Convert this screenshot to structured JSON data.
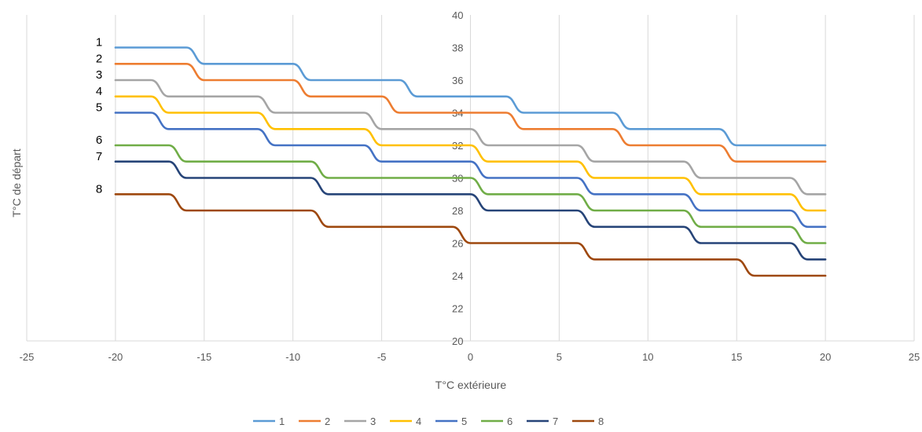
{
  "chart_data": {
    "type": "line",
    "xlabel": "T°C extérieure",
    "ylabel": "T°C de départ",
    "xlim": [
      -25,
      25
    ],
    "ylim": [
      20,
      40
    ],
    "xticks": [
      -25,
      -20,
      -15,
      -10,
      -5,
      0,
      5,
      10,
      15,
      20,
      25
    ],
    "yticks": [
      20,
      22,
      24,
      26,
      28,
      30,
      32,
      34,
      36,
      38,
      40
    ],
    "grid": "vertical",
    "legend": "bottom",
    "curve_labels": [
      "1",
      "2",
      "3",
      "4",
      "5",
      "6",
      "7",
      "8"
    ],
    "series": [
      {
        "name": "1",
        "color": "#5B9BD5",
        "x": [
          -20,
          -16,
          -15,
          -10,
          -9,
          -4,
          -3,
          2,
          3,
          8,
          9,
          14,
          15,
          20
        ],
        "y": [
          38,
          38,
          37,
          37,
          36,
          36,
          35,
          35,
          34,
          34,
          33,
          33,
          32,
          32
        ]
      },
      {
        "name": "2",
        "color": "#ED7D31",
        "x": [
          -20,
          -16,
          -15,
          -10,
          -9,
          -5,
          -4,
          2,
          3,
          8,
          9,
          14,
          15,
          20
        ],
        "y": [
          37,
          37,
          36,
          36,
          35,
          35,
          34,
          34,
          33,
          33,
          32,
          32,
          31,
          31
        ]
      },
      {
        "name": "3",
        "color": "#A5A5A5",
        "x": [
          -20,
          -18,
          -17,
          -12,
          -11,
          -6,
          -5,
          0,
          1,
          6,
          7,
          12,
          13,
          18,
          19,
          20
        ],
        "y": [
          36,
          36,
          35,
          35,
          34,
          34,
          33,
          33,
          32,
          32,
          31,
          31,
          30,
          30,
          29,
          29
        ]
      },
      {
        "name": "4",
        "color": "#FFC000",
        "x": [
          -20,
          -18,
          -17,
          -12,
          -11,
          -6,
          -5,
          0,
          1,
          6,
          7,
          12,
          13,
          18,
          19,
          20
        ],
        "y": [
          35,
          35,
          34,
          34,
          33,
          33,
          32,
          32,
          31,
          31,
          30,
          30,
          29,
          29,
          28,
          28
        ]
      },
      {
        "name": "5",
        "color": "#4472C4",
        "x": [
          -20,
          -18,
          -17,
          -12,
          -11,
          -6,
          -5,
          0,
          1,
          6,
          7,
          12,
          13,
          18,
          19,
          20
        ],
        "y": [
          34,
          34,
          33,
          33,
          32,
          32,
          31,
          31,
          30,
          30,
          29,
          29,
          28,
          28,
          27,
          27
        ]
      },
      {
        "name": "6",
        "color": "#70AD47",
        "x": [
          -20,
          -17,
          -16,
          -9,
          -8,
          0,
          1,
          6,
          7,
          12,
          13,
          18,
          19,
          20
        ],
        "y": [
          32,
          32,
          31,
          31,
          30,
          30,
          29,
          29,
          28,
          28,
          27,
          27,
          26,
          26
        ]
      },
      {
        "name": "7",
        "color": "#264478",
        "x": [
          -20,
          -17,
          -16,
          -9,
          -8,
          0,
          1,
          6,
          7,
          12,
          13,
          18,
          19,
          20
        ],
        "y": [
          31,
          31,
          30,
          30,
          29,
          29,
          28,
          28,
          27,
          27,
          26,
          26,
          25,
          25
        ]
      },
      {
        "name": "8",
        "color": "#9E480E",
        "x": [
          -20,
          -17,
          -16,
          -9,
          -8,
          -1,
          0,
          6,
          7,
          15,
          16,
          20
        ],
        "y": [
          29,
          29,
          28,
          28,
          27,
          27,
          26,
          26,
          25,
          25,
          24,
          24
        ]
      }
    ]
  }
}
